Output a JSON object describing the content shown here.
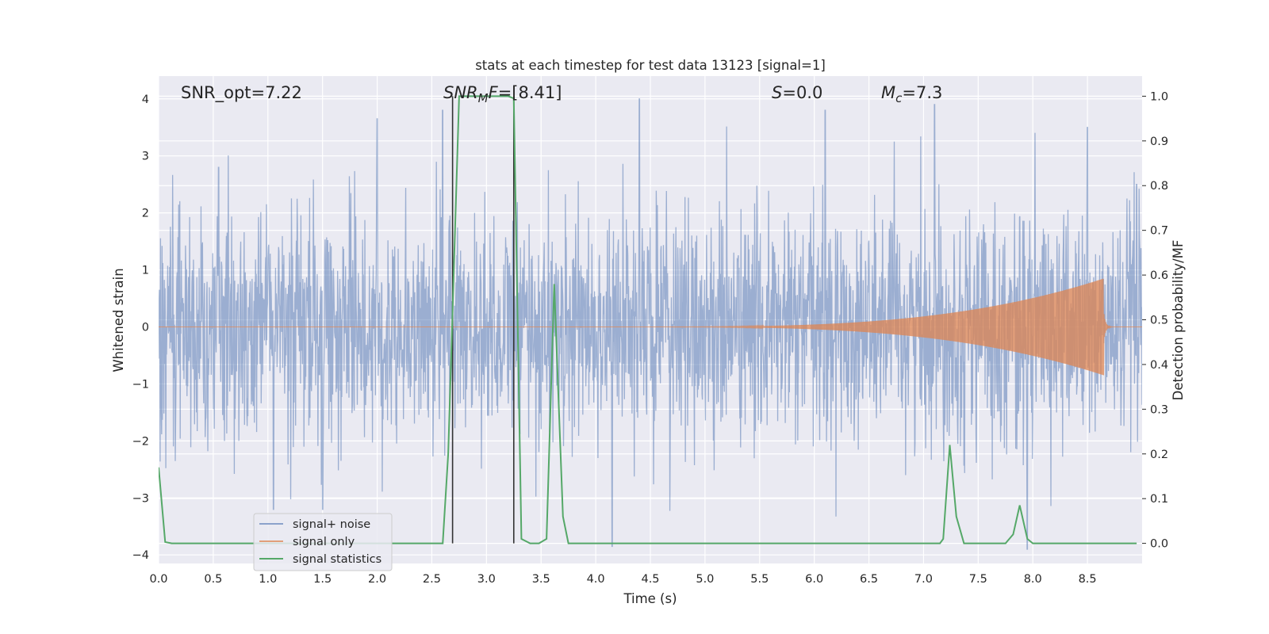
{
  "chart_data": {
    "type": "line",
    "title": "stats at each timestep for test data 13123 [signal=1]",
    "xlabel": "Time (s)",
    "ylabel": "Whitened strain",
    "y2label": "Detection probability/MF",
    "xlim": [
      0.0,
      9.0
    ],
    "ylim": [
      -4.15,
      4.4
    ],
    "y2lim": [
      -0.045,
      1.045
    ],
    "x_ticks": [
      "0.0",
      "0.5",
      "1.0",
      "1.5",
      "2.0",
      "2.5",
      "3.0",
      "3.5",
      "4.0",
      "4.5",
      "5.0",
      "5.5",
      "6.0",
      "6.5",
      "7.0",
      "7.5",
      "8.0",
      "8.5"
    ],
    "y_ticks": [
      "4",
      "3",
      "2",
      "1",
      "0",
      "−1",
      "−2",
      "−3",
      "−4"
    ],
    "y2_ticks": [
      "1.0",
      "0.9",
      "0.8",
      "0.7",
      "0.6",
      "0.5",
      "0.4",
      "0.3",
      "0.2",
      "0.1",
      "0.0"
    ],
    "grid": true,
    "legend_position": "lower-left",
    "annotations": {
      "snr_opt": "SNR_opt=7.22",
      "snr_mf_label": "SNR",
      "snr_mf_sub": "M",
      "snr_mf_tail": "F",
      "snr_mf_value": "=[8.41]",
      "s_label": "S",
      "s_value": "=0.0",
      "mc_label": "M",
      "mc_sub": "c",
      "mc_value": "=7.3"
    },
    "vertical_lines_x": [
      2.69,
      3.25
    ],
    "series": [
      {
        "name": "signal+ noise",
        "color": "#4c72b0",
        "description_envelope": {
          "typical_abs": 1.0,
          "peaks": [
            [
              0.55,
              2.8
            ],
            [
              2.0,
              3.65
            ],
            [
              2.6,
              3.8
            ],
            [
              4.4,
              4.0
            ],
            [
              6.1,
              3.8
            ],
            [
              7.1,
              3.9
            ],
            [
              8.5,
              3.5
            ],
            [
              8.95,
              2.5
            ],
            [
              1.05,
              -3.2
            ],
            [
              1.5,
              -3.2
            ],
            [
              4.15,
              -3.85
            ],
            [
              7.95,
              -3.9
            ]
          ]
        }
      },
      {
        "name": "signal only",
        "color": "#dd8452",
        "description_envelope": {
          "start_x": 4.3,
          "end_x": 8.65,
          "max_amp": 0.85
        }
      },
      {
        "name": "signal statistics",
        "color": "#55a868",
        "x": [
          0.0,
          0.06,
          0.12,
          2.6,
          2.65,
          2.75,
          3.2,
          3.25,
          3.32,
          3.4,
          3.48,
          3.55,
          3.62,
          3.7,
          3.75,
          7.15,
          7.18,
          7.24,
          7.3,
          7.37,
          7.75,
          7.82,
          7.88,
          7.95,
          8.0,
          8.95
        ],
        "y": [
          0.17,
          0.003,
          0.0,
          0.0,
          0.2,
          1.0,
          1.0,
          0.995,
          0.01,
          0.0,
          0.0,
          0.01,
          0.58,
          0.06,
          0.0,
          0.0,
          0.01,
          0.22,
          0.06,
          0.0,
          0.0,
          0.02,
          0.085,
          0.01,
          0.0,
          0.0
        ],
        "axis": "right"
      }
    ]
  }
}
